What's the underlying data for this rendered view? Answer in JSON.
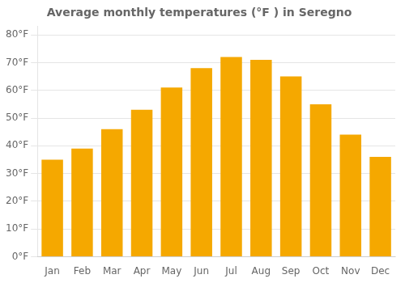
{
  "chart_data": {
    "type": "bar",
    "title": "Average monthly temperatures (°F ) in Seregno",
    "categories": [
      "Jan",
      "Feb",
      "Mar",
      "Apr",
      "May",
      "Jun",
      "Jul",
      "Aug",
      "Sep",
      "Oct",
      "Nov",
      "Dec"
    ],
    "values": [
      35,
      39,
      46,
      53,
      61,
      68,
      72,
      71,
      65,
      55,
      44,
      36
    ],
    "color": "#F5A800",
    "ylim": [
      0,
      83
    ],
    "yticks": [
      {
        "value": 0,
        "label": "0°F"
      },
      {
        "value": 10,
        "label": "10°F"
      },
      {
        "value": 20,
        "label": "20°F"
      },
      {
        "value": 30,
        "label": "30°F"
      },
      {
        "value": 40,
        "label": "40°F"
      },
      {
        "value": 50,
        "label": "50°F"
      },
      {
        "value": 60,
        "label": "60°F"
      },
      {
        "value": 70,
        "label": "70°F"
      },
      {
        "value": 80,
        "label": "80°F"
      }
    ],
    "grid": true
  }
}
